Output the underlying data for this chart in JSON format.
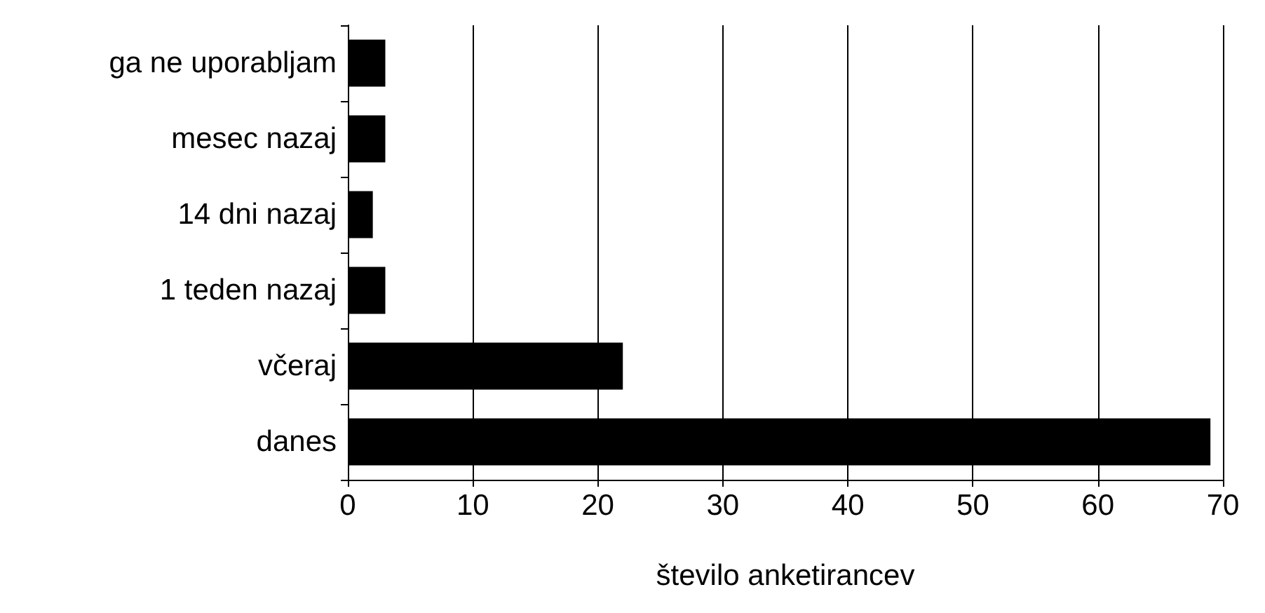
{
  "chart_data": {
    "type": "bar",
    "orientation": "horizontal",
    "xlabel": "število anketirancev",
    "categories": [
      "ga ne uporabljam",
      "mesec nazaj",
      "14 dni nazaj",
      "1 teden nazaj",
      "včeraj",
      "danes"
    ],
    "values": [
      3,
      3,
      2,
      3,
      22,
      69
    ],
    "color": "#000000",
    "xlim": [
      0,
      70
    ],
    "xticks": [
      0,
      10,
      20,
      30,
      40,
      50,
      60,
      70
    ],
    "grid": "x"
  }
}
